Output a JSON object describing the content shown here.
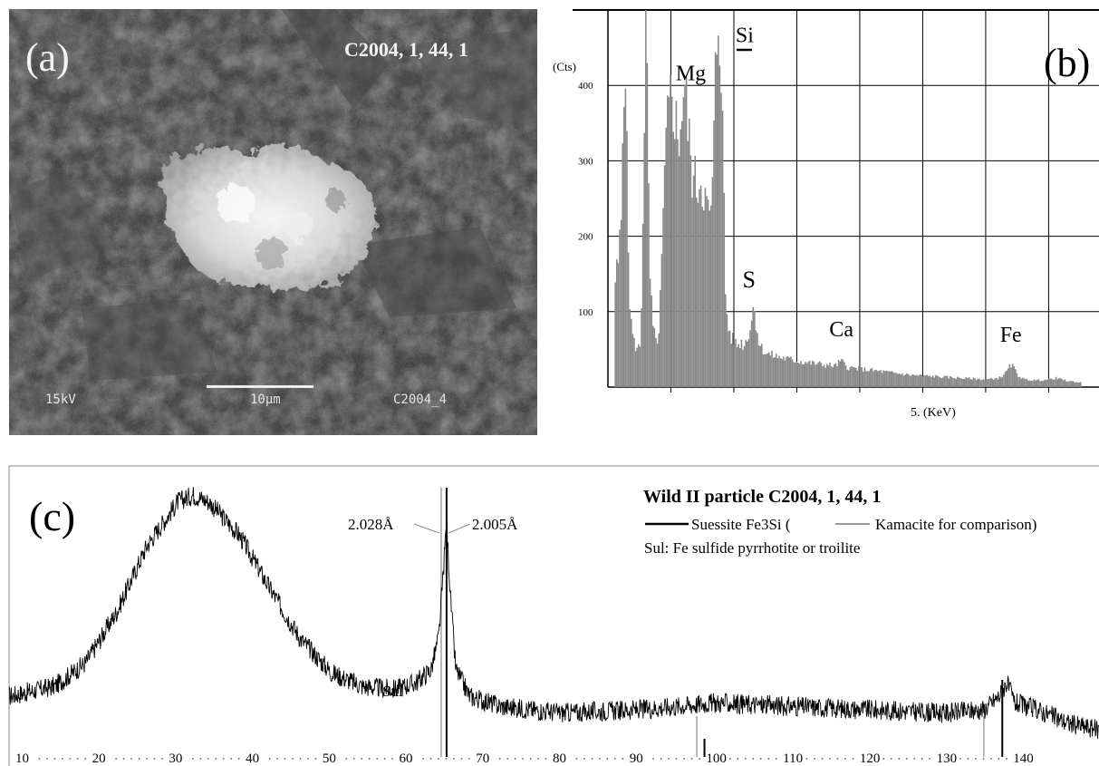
{
  "panel_a": {
    "label": "(a)",
    "sample_id": "C2004, 1, 44, 1",
    "voltage": "15kV",
    "scale_label": "10µm",
    "image_id": "C2004_4"
  },
  "chart_data": [
    {
      "type": "bar",
      "panel_label": "(b)",
      "ylabel": "(Cts)",
      "xlabel": "5. (KeV)",
      "ylim": [
        0,
        500
      ],
      "yticks": [
        100,
        200,
        300,
        400
      ],
      "grid": true,
      "peak_labels": [
        {
          "text": "Mg",
          "x": 1.25,
          "y": 395
        },
        {
          "text": "Si",
          "x": 1.74,
          "y": 450
        },
        {
          "text": "S",
          "x": 2.31,
          "y": 120
        },
        {
          "text": "Ca",
          "x": 3.69,
          "y": 55
        },
        {
          "text": "Fe",
          "x": 6.4,
          "y": 48
        }
      ],
      "spectrum": [
        {
          "e": 0.1,
          "c": 140
        },
        {
          "e": 0.15,
          "c": 160
        },
        {
          "e": 0.2,
          "c": 220
        },
        {
          "e": 0.23,
          "c": 380
        },
        {
          "e": 0.26,
          "c": 490
        },
        {
          "e": 0.29,
          "c": 300
        },
        {
          "e": 0.32,
          "c": 150
        },
        {
          "e": 0.35,
          "c": 90
        },
        {
          "e": 0.4,
          "c": 60
        },
        {
          "e": 0.45,
          "c": 50
        },
        {
          "e": 0.5,
          "c": 55
        },
        {
          "e": 0.53,
          "c": 140
        },
        {
          "e": 0.56,
          "c": 330
        },
        {
          "e": 0.59,
          "c": 500
        },
        {
          "e": 0.62,
          "c": 350
        },
        {
          "e": 0.65,
          "c": 160
        },
        {
          "e": 0.7,
          "c": 80
        },
        {
          "e": 0.75,
          "c": 60
        },
        {
          "e": 0.8,
          "c": 70
        },
        {
          "e": 0.85,
          "c": 180
        },
        {
          "e": 0.9,
          "c": 300
        },
        {
          "e": 0.95,
          "c": 360
        },
        {
          "e": 1.0,
          "c": 390
        },
        {
          "e": 1.05,
          "c": 370
        },
        {
          "e": 1.1,
          "c": 320
        },
        {
          "e": 1.15,
          "c": 360
        },
        {
          "e": 1.2,
          "c": 400
        },
        {
          "e": 1.25,
          "c": 360
        },
        {
          "e": 1.3,
          "c": 300
        },
        {
          "e": 1.35,
          "c": 275
        },
        {
          "e": 1.4,
          "c": 265
        },
        {
          "e": 1.45,
          "c": 280
        },
        {
          "e": 1.5,
          "c": 270
        },
        {
          "e": 1.55,
          "c": 240
        },
        {
          "e": 1.6,
          "c": 220
        },
        {
          "e": 1.65,
          "c": 260
        },
        {
          "e": 1.7,
          "c": 420
        },
        {
          "e": 1.74,
          "c": 500
        },
        {
          "e": 1.78,
          "c": 470
        },
        {
          "e": 1.82,
          "c": 300
        },
        {
          "e": 1.86,
          "c": 110
        },
        {
          "e": 1.9,
          "c": 80
        },
        {
          "e": 1.95,
          "c": 65
        },
        {
          "e": 2.0,
          "c": 60
        },
        {
          "e": 2.05,
          "c": 55
        },
        {
          "e": 2.1,
          "c": 60
        },
        {
          "e": 2.15,
          "c": 55
        },
        {
          "e": 2.2,
          "c": 65
        },
        {
          "e": 2.25,
          "c": 80
        },
        {
          "e": 2.31,
          "c": 110
        },
        {
          "e": 2.35,
          "c": 80
        },
        {
          "e": 2.4,
          "c": 55
        },
        {
          "e": 2.5,
          "c": 45
        },
        {
          "e": 2.6,
          "c": 42
        },
        {
          "e": 2.7,
          "c": 40
        },
        {
          "e": 2.8,
          "c": 38
        },
        {
          "e": 2.9,
          "c": 36
        },
        {
          "e": 3.0,
          "c": 35
        },
        {
          "e": 3.2,
          "c": 32
        },
        {
          "e": 3.4,
          "c": 30
        },
        {
          "e": 3.6,
          "c": 28
        },
        {
          "e": 3.69,
          "c": 35
        },
        {
          "e": 3.8,
          "c": 26
        },
        {
          "e": 4.0,
          "c": 24
        },
        {
          "e": 4.2,
          "c": 22
        },
        {
          "e": 4.4,
          "c": 20
        },
        {
          "e": 4.6,
          "c": 18
        },
        {
          "e": 4.8,
          "c": 16
        },
        {
          "e": 5.0,
          "c": 15
        },
        {
          "e": 5.2,
          "c": 14
        },
        {
          "e": 5.4,
          "c": 13
        },
        {
          "e": 5.6,
          "c": 12
        },
        {
          "e": 5.8,
          "c": 11
        },
        {
          "e": 6.0,
          "c": 10
        },
        {
          "e": 6.2,
          "c": 12
        },
        {
          "e": 6.3,
          "c": 18
        },
        {
          "e": 6.4,
          "c": 30
        },
        {
          "e": 6.5,
          "c": 16
        },
        {
          "e": 6.6,
          "c": 10
        },
        {
          "e": 6.8,
          "c": 9
        },
        {
          "e": 7.0,
          "c": 10
        },
        {
          "e": 7.1,
          "c": 12
        },
        {
          "e": 7.3,
          "c": 8
        },
        {
          "e": 7.5,
          "c": 6
        }
      ]
    },
    {
      "type": "line",
      "panel_label": "(c)",
      "title": "Wild II particle C2004, 1, 44, 1",
      "legend": {
        "suessite": "Suessite Fe3Si (",
        "kamacite": "Kamacite for comparison)",
        "sul_note": "Sul: Fe sulfide pyrrhotite or troilite"
      },
      "xticks": [
        10,
        20,
        30,
        40,
        50,
        60,
        70,
        80,
        90,
        100,
        110,
        120,
        130,
        140
      ],
      "xlim": [
        8,
        150
      ],
      "d_spacing_labels": [
        {
          "text": "2.028Å",
          "x": 64.3
        },
        {
          "text": "2.005Å",
          "x": 65.0
        }
      ],
      "annotations": [
        {
          "text": "Sul",
          "x": 59
        }
      ],
      "reference_lines": {
        "suessite": [
          65.0,
          98.6,
          137.4
        ],
        "kamacite": [
          64.3,
          97.6,
          135.0
        ]
      },
      "pattern": [
        {
          "x": 8,
          "y": 40
        },
        {
          "x": 10,
          "y": 41
        },
        {
          "x": 14,
          "y": 43
        },
        {
          "x": 18,
          "y": 50
        },
        {
          "x": 22,
          "y": 65
        },
        {
          "x": 26,
          "y": 85
        },
        {
          "x": 30,
          "y": 98
        },
        {
          "x": 32,
          "y": 100
        },
        {
          "x": 34,
          "y": 98
        },
        {
          "x": 38,
          "y": 88
        },
        {
          "x": 42,
          "y": 72
        },
        {
          "x": 46,
          "y": 57
        },
        {
          "x": 50,
          "y": 47
        },
        {
          "x": 54,
          "y": 43
        },
        {
          "x": 58,
          "y": 42
        },
        {
          "x": 61,
          "y": 44
        },
        {
          "x": 63,
          "y": 48
        },
        {
          "x": 64,
          "y": 58
        },
        {
          "x": 64.6,
          "y": 78
        },
        {
          "x": 65.0,
          "y": 92
        },
        {
          "x": 65.5,
          "y": 70
        },
        {
          "x": 66.2,
          "y": 48
        },
        {
          "x": 68,
          "y": 40
        },
        {
          "x": 72,
          "y": 37
        },
        {
          "x": 80,
          "y": 35
        },
        {
          "x": 90,
          "y": 36
        },
        {
          "x": 100,
          "y": 38
        },
        {
          "x": 110,
          "y": 37
        },
        {
          "x": 120,
          "y": 36
        },
        {
          "x": 130,
          "y": 35
        },
        {
          "x": 135,
          "y": 36
        },
        {
          "x": 137,
          "y": 40
        },
        {
          "x": 138,
          "y": 44
        },
        {
          "x": 139,
          "y": 38
        },
        {
          "x": 142,
          "y": 36
        },
        {
          "x": 146,
          "y": 32
        },
        {
          "x": 150,
          "y": 30
        }
      ]
    }
  ]
}
